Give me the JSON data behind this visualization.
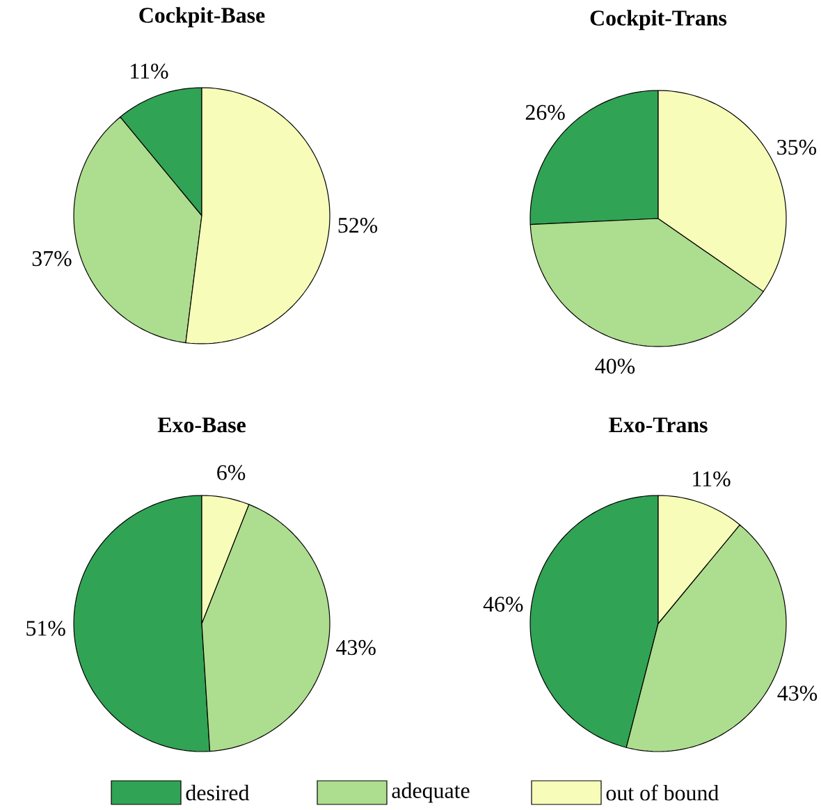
{
  "chart_data": [
    {
      "type": "pie",
      "title": "Cockpit-Base",
      "values": [
        11,
        37,
        52
      ],
      "value_labels": [
        "11%",
        "37%",
        "52%"
      ],
      "colors": [
        "#31a354",
        "#addd8e",
        "#f7fcb9"
      ]
    },
    {
      "type": "pie",
      "title": "Cockpit-Trans",
      "values": [
        26,
        40,
        35
      ],
      "value_labels": [
        "26%",
        "40%",
        "35%"
      ],
      "colors": [
        "#31a354",
        "#addd8e",
        "#f7fcb9"
      ]
    },
    {
      "type": "pie",
      "title": "Exo-Base",
      "values": [
        51,
        43,
        6
      ],
      "value_labels": [
        "51%",
        "43%",
        "6%"
      ],
      "colors": [
        "#31a354",
        "#addd8e",
        "#f7fcb9"
      ]
    },
    {
      "type": "pie",
      "title": "Exo-Trans",
      "categories": [
        "desired",
        "adequate",
        "out of bound"
      ],
      "values": [
        46,
        43,
        11
      ],
      "value_labels": [
        "46%",
        "43%",
        "11%"
      ],
      "colors": [
        "#31a354",
        "#addd8e",
        "#f7fcb9"
      ],
      "legend": "bottom"
    }
  ]
}
